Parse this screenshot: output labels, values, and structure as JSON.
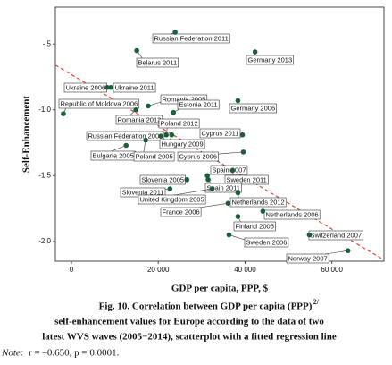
{
  "chart_data": {
    "type": "scatter",
    "x_label": "GDP per capita, PPP, $",
    "y_label": "Self-Enhancement",
    "xlim": [
      -3700,
      72000
    ],
    "ylim": [
      -2.15,
      -0.22
    ],
    "xticks": [
      0,
      {
        "value": 20000,
        "label": "20 000"
      },
      {
        "value": 40000,
        "label": "40 000"
      },
      {
        "value": 60000,
        "label": "60 000"
      }
    ],
    "yticks": [
      {
        "value": -0.5,
        "label": "-,5"
      },
      {
        "value": -1.0,
        "label": "-1,0"
      },
      {
        "value": -1.5,
        "label": "-1,5"
      },
      {
        "value": -2.0,
        "label": "-2,0"
      }
    ],
    "color": "#1d5e3a",
    "point_labels": [
      "Russian Federation 2011",
      "Germany 2013",
      "Belarus 2011",
      "Ukraine 2006",
      "Ukraine 2011",
      "Romania 2005",
      "Estonia 2011",
      "Germany 2006",
      "Republic of Moldova 2006",
      "Romania 2012",
      "Poland 2012",
      "Russian Federation 2006",
      "Hungary 2009",
      "Cyprus 2011",
      "Bulgaria 2005",
      "Poland 2005",
      "Cyprus 2006",
      "Spain 2007",
      "Sweden 2011",
      "Slovenia 2005",
      "Spain 2011",
      "Slovenia 2011",
      "United Kingdom 2005",
      "Netherlands 2012",
      "France 2006",
      "Netherlands 2006",
      "Finland 2005",
      "Sweden 2006",
      "Switzerland 2007",
      "Norway 2007"
    ],
    "x": [
      23900,
      42300,
      15050,
      8250,
      9070,
      17700,
      23500,
      38350,
      -1860,
      14850,
      21850,
      20600,
      23100,
      39400,
      12600,
      17100,
      39600,
      31300,
      37100,
      26600,
      31500,
      22700,
      32400,
      38350,
      36100,
      44100,
      38350,
      36300,
      54800,
      63700
    ],
    "values": [
      -0.41,
      -0.56,
      -0.55,
      -0.83,
      -0.83,
      -0.97,
      -1.02,
      -0.93,
      -1.03,
      -1.0,
      -1.19,
      -1.2,
      -1.19,
      -1.19,
      -1.27,
      -1.23,
      -1.32,
      -1.5,
      -1.46,
      -1.53,
      -1.53,
      -1.6,
      -1.6,
      -1.63,
      -1.71,
      -1.77,
      -1.81,
      -1.95,
      -1.95,
      -2.07
    ],
    "trend_line": {
      "x": [
        -3700,
        72000
      ],
      "y": [
        -0.66,
        -2.14
      ],
      "color": "#e0453a"
    },
    "caption_lines": [
      "Fig. 10. Correlation between GDP per capita (PPP)",
      "self-enhancement values for Europe according to the data of two",
      "latest WVS waves (2005−2014), scatterplot with a fitted regression line"
    ],
    "caption_superscript": "2/",
    "note_label": "Note:",
    "note": "r = –0.650, p = 0.0001."
  }
}
